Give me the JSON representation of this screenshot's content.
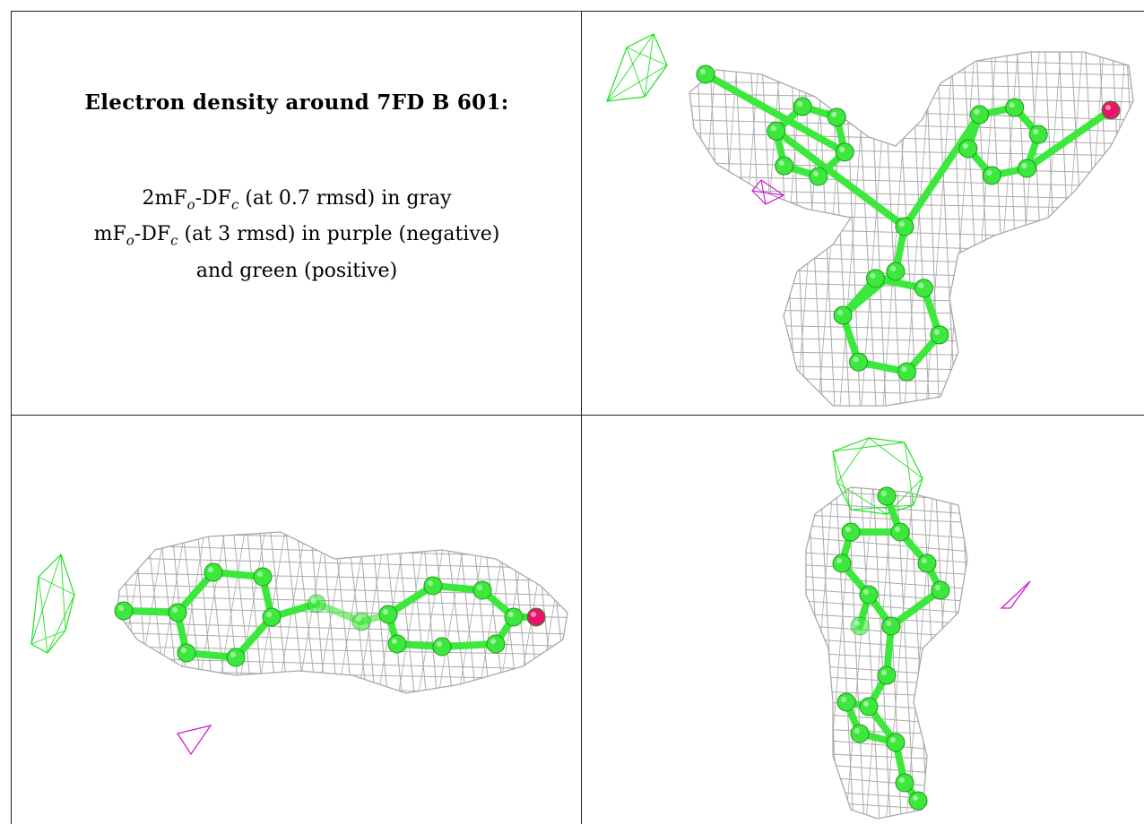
{
  "caption": {
    "title": "Electron density around 7FD B 601:",
    "line1": {
      "a": "2mF",
      "o": "o",
      "b": "-DF",
      "c": "c",
      "rest": " (at 0.7 rmsd) in gray"
    },
    "line2": {
      "a": "mF",
      "o": "o",
      "b": "-DF",
      "c": "c",
      "rest": " (at 3 rmsd) in purple (negative)"
    },
    "line3": "and green (positive)"
  },
  "colors": {
    "mesh_2fofc": "#a9a9a9",
    "mesh_positive": "#22e022",
    "mesh_negative": "#d01ad0",
    "carbon": "#3de83d",
    "oxygen": "#e8156b",
    "border": "#222222"
  },
  "panels": [
    "view-top-right",
    "view-bottom-left",
    "view-bottom-right"
  ]
}
